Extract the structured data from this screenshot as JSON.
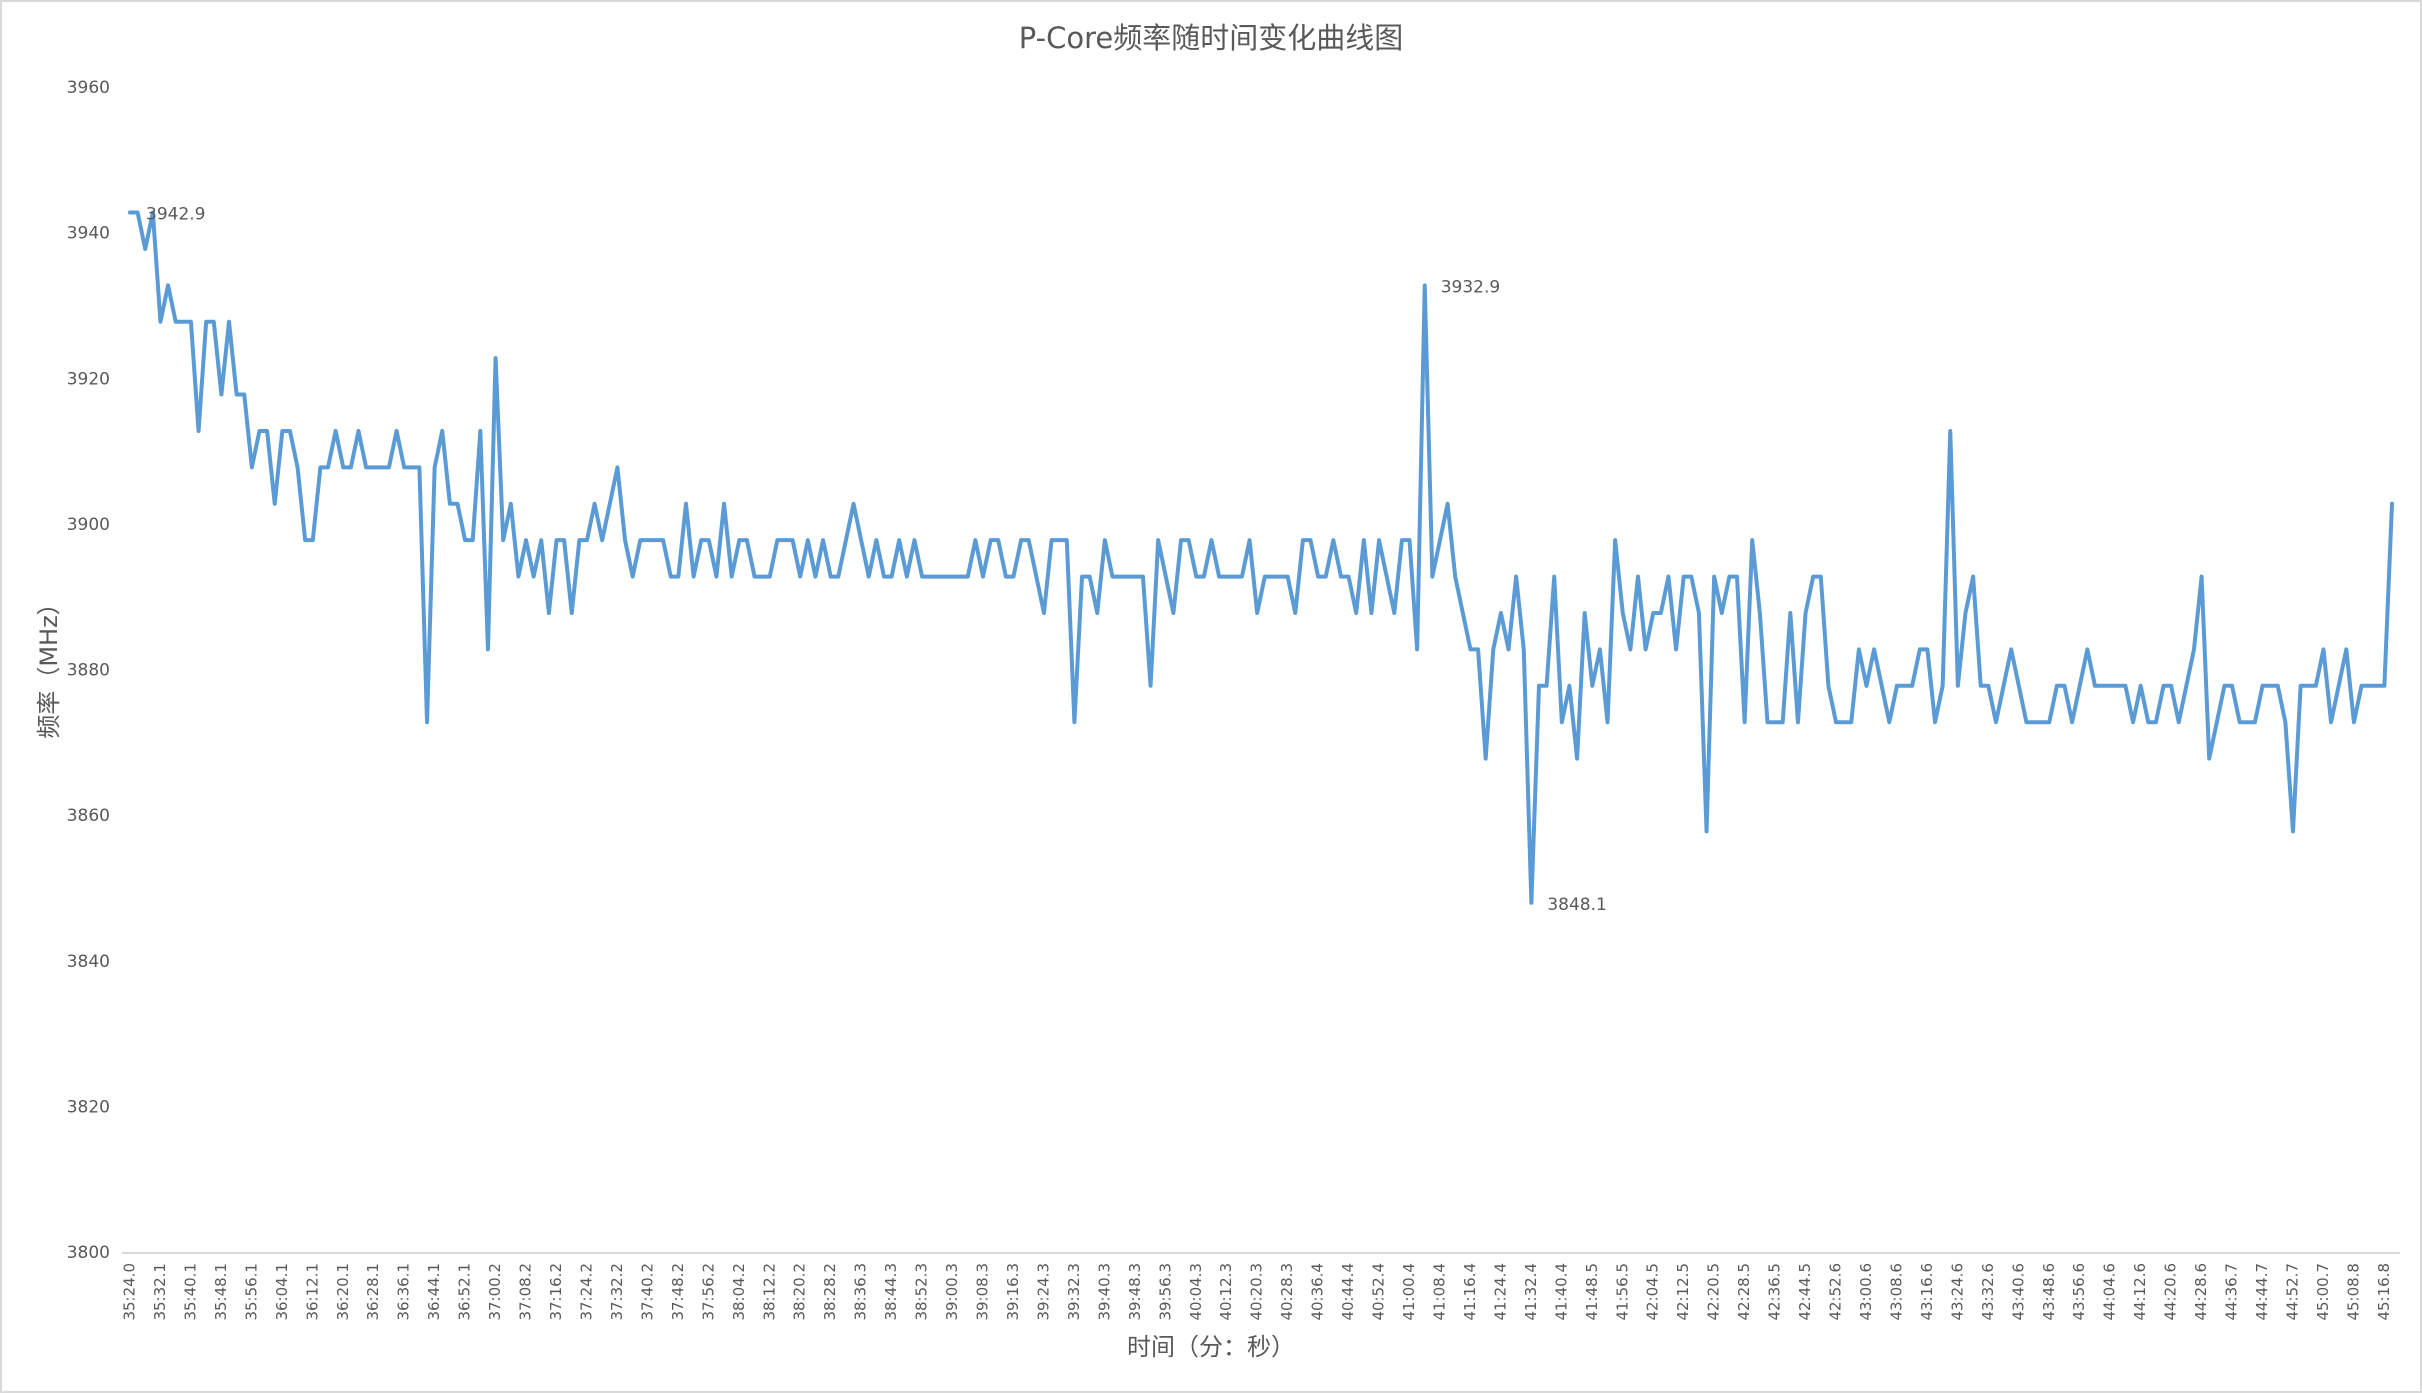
{
  "chart_data": {
    "type": "line",
    "title": "P-Core频率随时间变化曲线图",
    "x_label": "时间（分：秒）",
    "y_label": "频率（MHz）",
    "color": "#5b9bd5",
    "grid": false,
    "ylim": [
      3800,
      3960
    ],
    "yticks": [
      3800,
      3820,
      3840,
      3860,
      3880,
      3900,
      3920,
      3940,
      3960
    ],
    "data_label_indices": [
      0,
      170,
      184
    ],
    "categories": [
      "35:24.0",
      null,
      null,
      null,
      "35:32.1",
      null,
      null,
      null,
      "35:40.1",
      null,
      null,
      null,
      "35:48.1",
      null,
      null,
      null,
      "35:56.1",
      null,
      null,
      null,
      "36:04.1",
      null,
      null,
      null,
      "36:12.1",
      null,
      null,
      null,
      "36:20.1",
      null,
      null,
      null,
      "36:28.1",
      null,
      null,
      null,
      "36:36.1",
      null,
      null,
      null,
      "36:44.1",
      null,
      null,
      null,
      "36:52.1",
      null,
      null,
      null,
      "37:00.2",
      null,
      null,
      null,
      "37:08.2",
      null,
      null,
      null,
      "37:16.2",
      null,
      null,
      null,
      "37:24.2",
      null,
      null,
      null,
      "37:32.2",
      null,
      null,
      null,
      "37:40.2",
      null,
      null,
      null,
      "37:48.2",
      null,
      null,
      null,
      "37:56.2",
      null,
      null,
      null,
      "38:04.2",
      null,
      null,
      null,
      "38:12.2",
      null,
      null,
      null,
      "38:20.2",
      null,
      null,
      null,
      "38:28.2",
      null,
      null,
      null,
      "38:36.3",
      null,
      null,
      null,
      "38:44.3",
      null,
      null,
      null,
      "38:52.3",
      null,
      null,
      null,
      "39:00.3",
      null,
      null,
      null,
      "39:08.3",
      null,
      null,
      null,
      "39:16.3",
      null,
      null,
      null,
      "39:24.3",
      null,
      null,
      null,
      "39:32.3",
      null,
      null,
      null,
      "39:40.3",
      null,
      null,
      null,
      "39:48.3",
      null,
      null,
      null,
      "39:56.3",
      null,
      null,
      null,
      "40:04.3",
      null,
      null,
      null,
      "40:12.3",
      null,
      null,
      null,
      "40:20.3",
      null,
      null,
      null,
      "40:28.3",
      null,
      null,
      null,
      "40:36.4",
      null,
      null,
      null,
      "40:44.4",
      null,
      null,
      null,
      "40:52.4",
      null,
      null,
      null,
      "41:00.4",
      null,
      null,
      null,
      "41:08.4",
      null,
      null,
      null,
      "41:16.4",
      null,
      null,
      null,
      "41:24.4",
      null,
      null,
      null,
      "41:32.4",
      null,
      null,
      null,
      "41:40.4",
      null,
      null,
      null,
      "41:48.5",
      null,
      null,
      null,
      "41:56.5",
      null,
      null,
      null,
      "42:04.5",
      null,
      null,
      null,
      "42:12.5",
      null,
      null,
      null,
      "42:20.5",
      null,
      null,
      null,
      "42:28.5",
      null,
      null,
      null,
      "42:36.5",
      null,
      null,
      null,
      "42:44.5",
      null,
      null,
      null,
      "42:52.6",
      null,
      null,
      null,
      "43:00.6",
      null,
      null,
      null,
      "43:08.6",
      null,
      null,
      null,
      "43:16.6",
      null,
      null,
      null,
      "43:24.6",
      null,
      null,
      null,
      "43:32.6",
      null,
      null,
      null,
      "43:40.6",
      null,
      null,
      null,
      "43:48.6",
      null,
      null,
      null,
      "43:56.6",
      null,
      null,
      null,
      "44:04.6",
      null,
      null,
      null,
      "44:12.6",
      null,
      null,
      null,
      "44:20.6",
      null,
      null,
      null,
      "44:28.6",
      null,
      null,
      null,
      "44:36.7",
      null,
      null,
      null,
      "44:44.7",
      null,
      null,
      null,
      "44:52.7",
      null,
      null,
      null,
      "45:00.7",
      null,
      null,
      null,
      "45:08.8",
      null,
      null,
      null,
      "45:16.8",
      null
    ],
    "values": [
      3942.9,
      3942.9,
      3937.9,
      3942.9,
      3927.9,
      3932.9,
      3927.9,
      3927.9,
      3927.9,
      3912.9,
      3927.9,
      3927.9,
      3917.9,
      3927.9,
      3917.9,
      3917.9,
      3907.9,
      3912.9,
      3912.9,
      3902.9,
      3912.9,
      3912.9,
      3907.9,
      3897.9,
      3897.9,
      3907.9,
      3907.9,
      3912.9,
      3907.9,
      3907.9,
      3912.9,
      3907.9,
      3907.9,
      3907.9,
      3907.9,
      3912.9,
      3907.9,
      3907.9,
      3907.9,
      3872.9,
      3907.9,
      3912.9,
      3902.9,
      3902.9,
      3897.9,
      3897.9,
      3912.9,
      3882.9,
      3922.9,
      3897.9,
      3902.9,
      3892.9,
      3897.9,
      3892.9,
      3897.9,
      3887.9,
      3897.9,
      3897.9,
      3887.9,
      3897.9,
      3897.9,
      3902.9,
      3897.9,
      3902.9,
      3907.9,
      3897.9,
      3892.9,
      3897.9,
      3897.9,
      3897.9,
      3897.9,
      3892.9,
      3892.9,
      3902.9,
      3892.9,
      3897.9,
      3897.9,
      3892.9,
      3902.9,
      3892.9,
      3897.9,
      3897.9,
      3892.9,
      3892.9,
      3892.9,
      3897.9,
      3897.9,
      3897.9,
      3892.9,
      3897.9,
      3892.9,
      3897.9,
      3892.9,
      3892.9,
      3897.9,
      3902.9,
      3897.9,
      3892.9,
      3897.9,
      3892.9,
      3892.9,
      3897.9,
      3892.9,
      3897.9,
      3892.9,
      3892.9,
      3892.9,
      3892.9,
      3892.9,
      3892.9,
      3892.9,
      3897.9,
      3892.9,
      3897.9,
      3897.9,
      3892.9,
      3892.9,
      3897.9,
      3897.9,
      3892.9,
      3887.9,
      3897.9,
      3897.9,
      3897.9,
      3872.9,
      3892.9,
      3892.9,
      3887.9,
      3897.9,
      3892.9,
      3892.9,
      3892.9,
      3892.9,
      3892.9,
      3877.9,
      3897.9,
      3892.9,
      3887.9,
      3897.9,
      3897.9,
      3892.9,
      3892.9,
      3897.9,
      3892.9,
      3892.9,
      3892.9,
      3892.9,
      3897.9,
      3887.9,
      3892.9,
      3892.9,
      3892.9,
      3892.9,
      3887.9,
      3897.9,
      3897.9,
      3892.9,
      3892.9,
      3897.9,
      3892.9,
      3892.9,
      3887.9,
      3897.9,
      3887.9,
      3897.9,
      3892.9,
      3887.9,
      3897.9,
      3897.9,
      3882.9,
      3932.9,
      3892.9,
      3897.9,
      3902.9,
      3892.9,
      3887.9,
      3882.9,
      3882.9,
      3867.9,
      3882.9,
      3887.9,
      3882.9,
      3892.9,
      3882.9,
      3848.1,
      3877.9,
      3877.9,
      3892.9,
      3872.9,
      3877.9,
      3867.9,
      3887.9,
      3877.9,
      3882.9,
      3872.9,
      3897.9,
      3887.9,
      3882.9,
      3892.9,
      3882.9,
      3887.9,
      3887.9,
      3892.9,
      3882.9,
      3892.9,
      3892.9,
      3887.9,
      3857.9,
      3892.9,
      3887.9,
      3892.9,
      3892.9,
      3872.9,
      3897.9,
      3887.9,
      3872.9,
      3872.9,
      3872.9,
      3887.9,
      3872.9,
      3887.9,
      3892.9,
      3892.9,
      3877.9,
      3872.9,
      3872.9,
      3872.9,
      3882.9,
      3877.9,
      3882.9,
      3877.9,
      3872.9,
      3877.9,
      3877.9,
      3877.9,
      3882.9,
      3882.9,
      3872.9,
      3877.9,
      3912.9,
      3877.9,
      3887.9,
      3892.9,
      3877.9,
      3877.9,
      3872.9,
      3877.9,
      3882.9,
      3877.9,
      3872.9,
      3872.9,
      3872.9,
      3872.9,
      3877.9,
      3877.9,
      3872.9,
      3877.9,
      3882.9,
      3877.9,
      3877.9,
      3877.9,
      3877.9,
      3877.9,
      3872.9,
      3877.9,
      3872.9,
      3872.9,
      3877.9,
      3877.9,
      3872.9,
      3877.9,
      3882.9,
      3892.9,
      3867.9,
      3872.9,
      3877.9,
      3877.9,
      3872.9,
      3872.9,
      3872.9,
      3877.9,
      3877.9,
      3877.9,
      3872.9,
      3857.9,
      3877.9,
      3877.9,
      3877.9,
      3882.9,
      3872.9,
      3877.9,
      3882.9,
      3872.9,
      3877.9,
      3877.9,
      3877.9,
      3877.9,
      3902.9
    ]
  }
}
